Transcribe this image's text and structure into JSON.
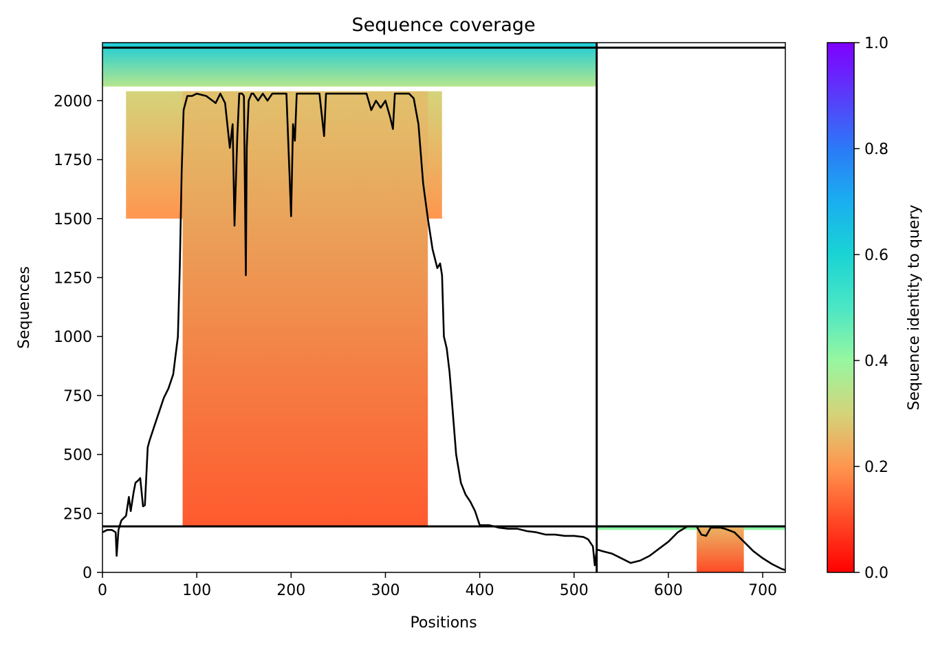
{
  "chart_data": {
    "type": "heatmap",
    "title": "Sequence coverage",
    "xlabel": "Positions",
    "ylabel": "Sequences",
    "colorbar_label": "Sequence identity to query",
    "xlim": [
      0,
      724
    ],
    "ylim": [
      0,
      2246
    ],
    "x_ticks": [
      0,
      100,
      200,
      300,
      400,
      500,
      600,
      700
    ],
    "y_ticks": [
      0,
      250,
      500,
      750,
      1000,
      1250,
      1500,
      1750,
      2000
    ],
    "colorbar": {
      "range": [
        0.0,
        1.0
      ],
      "ticks": [
        "0.0",
        "0.2",
        "0.4",
        "0.6",
        "0.8",
        "1.0"
      ],
      "colormap": "rainbow_r",
      "stops": [
        {
          "v": 0.0,
          "color": "#ff0000"
        },
        {
          "v": 0.1,
          "color": "#ff4b26"
        },
        {
          "v": 0.2,
          "color": "#ff964f"
        },
        {
          "v": 0.3,
          "color": "#d4d47a"
        },
        {
          "v": 0.4,
          "color": "#96f7a0"
        },
        {
          "v": 0.5,
          "color": "#4be6c5"
        },
        {
          "v": 0.6,
          "color": "#1ad4d4"
        },
        {
          "v": 0.7,
          "color": "#1aaff0"
        },
        {
          "v": 0.8,
          "color": "#2b7af7"
        },
        {
          "v": 0.9,
          "color": "#5a3bfa"
        },
        {
          "v": 1.0,
          "color": "#7f00ff"
        }
      ]
    },
    "separators": {
      "chain_boundary_position": 524,
      "sequence_boundary": 195,
      "top_line": 2225
    },
    "coverage_blocks": [
      {
        "x": [
          0,
          524
        ],
        "y": [
          2060,
          2246
        ],
        "identity_top": 0.62,
        "identity_bottom": 0.35
      },
      {
        "x": [
          25,
          360
        ],
        "y": [
          1500,
          2040
        ],
        "identity_top": 0.3,
        "identity_bottom": 0.2
      },
      {
        "x": [
          85,
          345
        ],
        "y": [
          195,
          2040
        ],
        "identity_top": 0.27,
        "identity_bottom": 0.12
      },
      {
        "x": [
          524,
          724
        ],
        "y": [
          180,
          200
        ],
        "identity_top": 0.45,
        "identity_bottom": 0.4
      },
      {
        "x": [
          630,
          680
        ],
        "y": [
          0,
          195
        ],
        "identity_top": 0.25,
        "identity_bottom": 0.1
      }
    ],
    "coverage_line": {
      "x": [
        0,
        5,
        10,
        14,
        15,
        17,
        20,
        25,
        28,
        30,
        33,
        35,
        38,
        40,
        43,
        45,
        48,
        50,
        55,
        60,
        65,
        70,
        75,
        80,
        82,
        84,
        86,
        90,
        95,
        100,
        110,
        120,
        125,
        130,
        135,
        138,
        140,
        143,
        145,
        148,
        150,
        152,
        153,
        155,
        158,
        160,
        165,
        170,
        175,
        180,
        185,
        190,
        195,
        200,
        202,
        204,
        206,
        210,
        220,
        230,
        235,
        237,
        240,
        245,
        250,
        260,
        270,
        280,
        285,
        290,
        295,
        300,
        305,
        308,
        310,
        315,
        320,
        325,
        330,
        335,
        340,
        345,
        350,
        355,
        358,
        360,
        362,
        365,
        368,
        370,
        372,
        375,
        380,
        385,
        390,
        395,
        400,
        410,
        420,
        430,
        440,
        450,
        460,
        470,
        480,
        490,
        500,
        510,
        515,
        520,
        522,
        524,
        526,
        530,
        540,
        550,
        560,
        570,
        580,
        590,
        600,
        610,
        620,
        630,
        635,
        640,
        645,
        650,
        655,
        660,
        670,
        680,
        690,
        700,
        710,
        720,
        724
      ],
      "y": [
        170,
        180,
        180,
        170,
        70,
        180,
        220,
        240,
        320,
        260,
        340,
        380,
        390,
        400,
        280,
        285,
        530,
        560,
        620,
        680,
        740,
        780,
        840,
        1000,
        1300,
        1700,
        1960,
        2020,
        2020,
        2030,
        2020,
        1990,
        2030,
        1990,
        1800,
        1900,
        1470,
        1850,
        2030,
        2030,
        2020,
        1260,
        1800,
        2000,
        2030,
        2030,
        2000,
        2030,
        2000,
        2030,
        2030,
        2030,
        2030,
        1510,
        1900,
        1830,
        2030,
        2030,
        2030,
        2030,
        1850,
        2030,
        2030,
        2030,
        2030,
        2030,
        2030,
        2030,
        1960,
        2000,
        1970,
        2000,
        1930,
        1880,
        2030,
        2030,
        2030,
        2030,
        2010,
        1900,
        1650,
        1500,
        1370,
        1290,
        1310,
        1260,
        1000,
        950,
        850,
        750,
        650,
        500,
        380,
        330,
        300,
        260,
        200,
        200,
        190,
        185,
        185,
        175,
        170,
        160,
        160,
        155,
        155,
        150,
        140,
        110,
        30,
        95,
        95,
        90,
        80,
        60,
        40,
        50,
        70,
        100,
        130,
        170,
        195,
        195,
        160,
        155,
        190,
        190,
        190,
        185,
        170,
        130,
        90,
        60,
        35,
        15,
        10
      ]
    }
  }
}
